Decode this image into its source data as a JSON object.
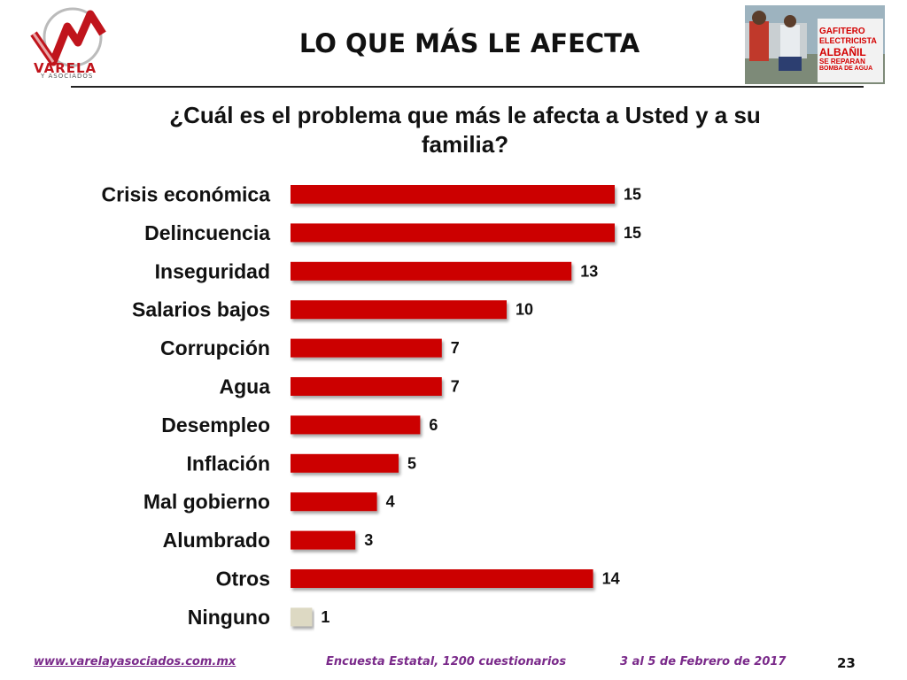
{
  "header": {
    "logo_text": "VARELA",
    "logo_subtext": "Y ASOCIADOS",
    "title": "LO QUE MÁS LE AFECTA",
    "photo_signs": [
      "GAFITERO",
      "ELECTRICISTA",
      "ALBAÑIL",
      "SE REPARAN",
      "BOMBA DE AGUA"
    ]
  },
  "chart_data": {
    "type": "bar",
    "orientation": "horizontal",
    "title": "¿Cuál es el problema que más le afecta a Usted y a su familia?",
    "categories": [
      "Crisis económica",
      "Delincuencia",
      "Inseguridad",
      "Salarios bajos",
      "Corrupción",
      "Agua",
      "Desempleo",
      "Inflación",
      "Mal gobierno",
      "Alumbrado",
      "Otros",
      "Ninguno"
    ],
    "values": [
      15,
      15,
      13,
      10,
      7,
      7,
      6,
      5,
      4,
      3,
      14,
      1
    ],
    "data_labels": [
      "15",
      "15",
      "13",
      "10",
      "7",
      "7",
      "6",
      "5",
      "4",
      "3",
      "14",
      "1"
    ],
    "colors": [
      "#cc0000",
      "#cc0000",
      "#cc0000",
      "#cc0000",
      "#cc0000",
      "#cc0000",
      "#cc0000",
      "#cc0000",
      "#cc0000",
      "#cc0000",
      "#cc0000",
      "#ddd9c3"
    ],
    "xlim": [
      0,
      16
    ],
    "grid": false,
    "legend": "none"
  },
  "footer": {
    "website": "www.varelayasociados.com.mx",
    "survey": "Encuesta Estatal, 1200 cuestionarios",
    "date": "3 al 5 de Febrero de 2017",
    "page_number": "23"
  }
}
